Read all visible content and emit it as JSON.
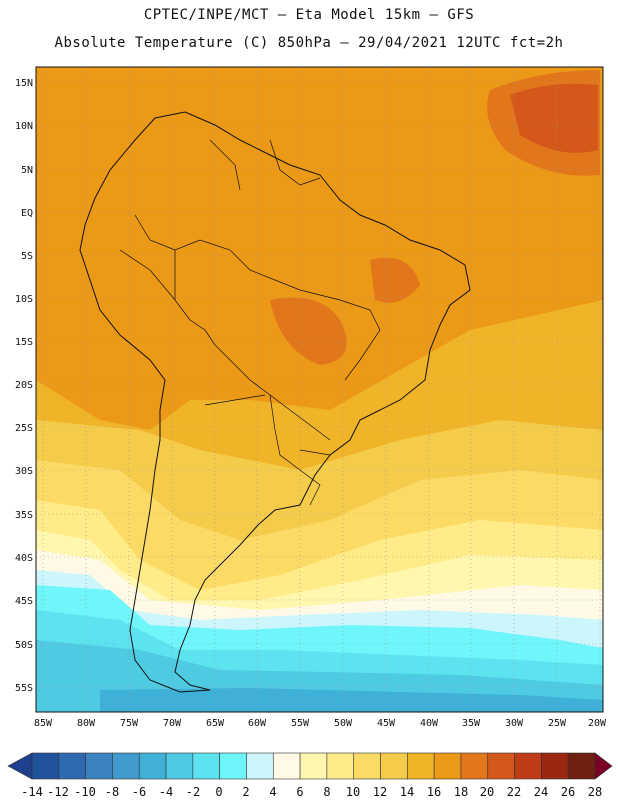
{
  "header": {
    "title_line1": "CPTEC/INPE/MCT –  Eta Model 15km – GFS",
    "title_line2": "Absolute Temperature (C) 850hPa – 29/04/2021 12UTC fct=2h"
  },
  "map": {
    "lat_labels": [
      "15N",
      "10N",
      "5N",
      "EQ",
      "5S",
      "10S",
      "15S",
      "20S",
      "25S",
      "30S",
      "35S",
      "40S",
      "45S",
      "50S",
      "55S"
    ],
    "lon_labels": [
      "85W",
      "80W",
      "75W",
      "70W",
      "65W",
      "60W",
      "55W",
      "50W",
      "45W",
      "40W",
      "35W",
      "30W",
      "25W",
      "20W"
    ]
  },
  "colorbar": {
    "labels": [
      "-14",
      "-12",
      "-10",
      "-8",
      "-6",
      "-4",
      "-2",
      "0",
      "2",
      "4",
      "6",
      "8",
      "10",
      "12",
      "14",
      "16",
      "18",
      "20",
      "22",
      "24",
      "26",
      "28"
    ],
    "colors": [
      "#1f3f8f",
      "#23529d",
      "#2d6aaf",
      "#3a82c0",
      "#419acd",
      "#3fb0d8",
      "#4fcae3",
      "#5ce3ef",
      "#6ef6fa",
      "#cdf6fc",
      "#fff9e6",
      "#fff7ad",
      "#ffeb87",
      "#fbdb66",
      "#f5cb4a",
      "#f0b428",
      "#ec9918",
      "#e2761a",
      "#d4581a",
      "#c03c18",
      "#9a2710",
      "#702010",
      "#7a0026"
    ]
  }
}
